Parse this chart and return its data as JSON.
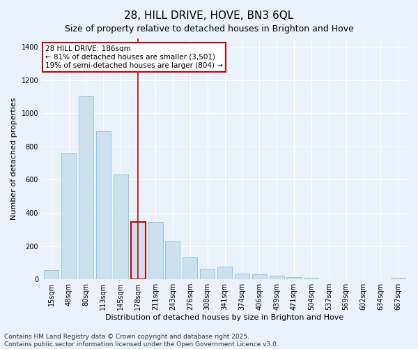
{
  "title": "28, HILL DRIVE, HOVE, BN3 6QL",
  "subtitle": "Size of property relative to detached houses in Brighton and Hove",
  "xlabel": "Distribution of detached houses by size in Brighton and Hove",
  "ylabel": "Number of detached properties",
  "categories": [
    "15sqm",
    "48sqm",
    "80sqm",
    "113sqm",
    "145sqm",
    "178sqm",
    "211sqm",
    "243sqm",
    "276sqm",
    "308sqm",
    "341sqm",
    "374sqm",
    "406sqm",
    "439sqm",
    "471sqm",
    "504sqm",
    "537sqm",
    "569sqm",
    "602sqm",
    "634sqm",
    "667sqm"
  ],
  "values": [
    55,
    760,
    1100,
    890,
    630,
    345,
    345,
    230,
    135,
    65,
    75,
    35,
    30,
    20,
    12,
    8,
    2,
    0,
    0,
    0,
    8
  ],
  "bar_color": "#cce0f0",
  "bar_edge_color": "#7ab8d8",
  "highlight_bar_index": 5,
  "highlight_bar_edge_color": "#cc0000",
  "vline_color": "#cc0000",
  "annotation_text": "28 HILL DRIVE: 186sqm\n← 81% of detached houses are smaller (3,501)\n19% of semi-detached houses are larger (804) →",
  "annotation_box_color": "#cc0000",
  "ylim": [
    0,
    1450
  ],
  "yticks": [
    0,
    200,
    400,
    600,
    800,
    1000,
    1200,
    1400
  ],
  "footer": "Contains HM Land Registry data © Crown copyright and database right 2025.\nContains public sector information licensed under the Open Government Licence v3.0.",
  "background_color": "#eaf2fb",
  "grid_color": "#ffffff",
  "title_fontsize": 11,
  "subtitle_fontsize": 9,
  "axis_label_fontsize": 8,
  "tick_fontsize": 7,
  "annotation_fontsize": 7.5,
  "footer_fontsize": 6.5
}
